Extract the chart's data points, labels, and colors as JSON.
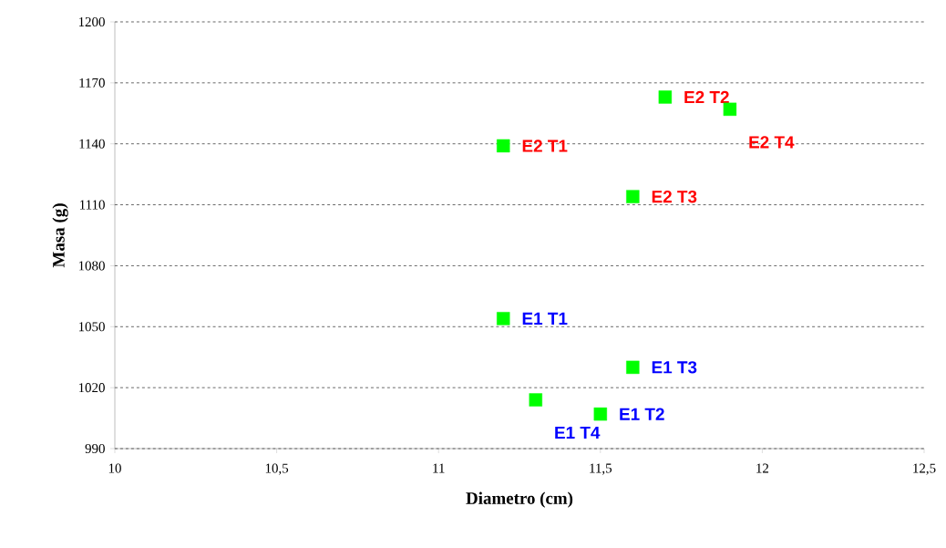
{
  "chart_data": {
    "type": "scatter",
    "xlabel": "Diametro (cm)",
    "ylabel": "Masa (g)",
    "xlim": [
      10,
      12.5
    ],
    "ylim": [
      990,
      1200
    ],
    "xticks": [
      10,
      {
        "value": 10.5,
        "label": "10,5"
      },
      11,
      {
        "value": 11.5,
        "label": "11,5"
      },
      12,
      {
        "value": 12.5,
        "label": "12,5"
      }
    ],
    "yticks": [
      990,
      1020,
      1050,
      1080,
      1110,
      1140,
      1170,
      1200
    ],
    "grid": "y",
    "marker": "square",
    "series": [
      {
        "color": "#00ff00",
        "x": [
          11.2,
          11.5,
          11.6,
          11.3
        ],
        "values": [
          1054,
          1007,
          1030,
          1014
        ],
        "value_labels": [
          "E1 T1",
          "E1 T2",
          "E1 T3",
          "E1 T4"
        ]
      },
      {
        "color": "#00ff00",
        "x": [
          11.2,
          11.7,
          11.6,
          11.9
        ],
        "values": [
          1139,
          1163,
          1114,
          1157
        ],
        "value_labels": [
          "E2 T1",
          "E2 T2",
          "E2 T3",
          "E2 T4"
        ]
      }
    ]
  }
}
